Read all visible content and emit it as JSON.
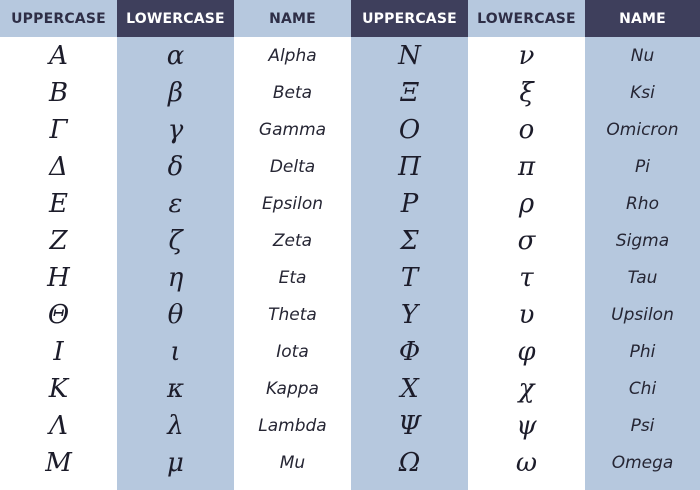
{
  "headers": [
    "UPPERCASE",
    "LOWERCASE",
    "NAME",
    "UPPERCASE",
    "LOWERCASE",
    "NAME"
  ],
  "colors": {
    "dark_header": "#3e3f5c",
    "light_band": "#b6c8de",
    "text": "#1c1c2a"
  },
  "left": [
    {
      "upper": "Α",
      "lower": "α",
      "name": "Alpha"
    },
    {
      "upper": "Β",
      "lower": "β",
      "name": "Beta"
    },
    {
      "upper": "Γ",
      "lower": "γ",
      "name": "Gamma"
    },
    {
      "upper": "Δ",
      "lower": "δ",
      "name": "Delta"
    },
    {
      "upper": "Ε",
      "lower": "ε",
      "name": "Epsilon"
    },
    {
      "upper": "Ζ",
      "lower": "ζ",
      "name": "Zeta"
    },
    {
      "upper": "Η",
      "lower": "η",
      "name": "Eta"
    },
    {
      "upper": "Θ",
      "lower": "θ",
      "name": "Theta"
    },
    {
      "upper": "Ι",
      "lower": "ι",
      "name": "Iota"
    },
    {
      "upper": "Κ",
      "lower": "κ",
      "name": "Kappa"
    },
    {
      "upper": "Λ",
      "lower": "λ",
      "name": "Lambda"
    },
    {
      "upper": "Μ",
      "lower": "μ",
      "name": "Mu"
    }
  ],
  "right": [
    {
      "upper": "Ν",
      "lower": "ν",
      "name": "Nu"
    },
    {
      "upper": "Ξ",
      "lower": "ξ",
      "name": "Ksi"
    },
    {
      "upper": "Ο",
      "lower": "ο",
      "name": "Omicron"
    },
    {
      "upper": "Π",
      "lower": "π",
      "name": "Pi"
    },
    {
      "upper": "Ρ",
      "lower": "ρ",
      "name": "Rho"
    },
    {
      "upper": "Σ",
      "lower": "σ",
      "name": "Sigma"
    },
    {
      "upper": "Τ",
      "lower": "τ",
      "name": "Tau"
    },
    {
      "upper": "Υ",
      "lower": "υ",
      "name": "Upsilon"
    },
    {
      "upper": "Φ",
      "lower": "φ",
      "name": "Phi"
    },
    {
      "upper": "Χ",
      "lower": "χ",
      "name": "Chi"
    },
    {
      "upper": "Ψ",
      "lower": "ψ",
      "name": "Psi"
    },
    {
      "upper": "Ω",
      "lower": "ω",
      "name": "Omega"
    }
  ]
}
